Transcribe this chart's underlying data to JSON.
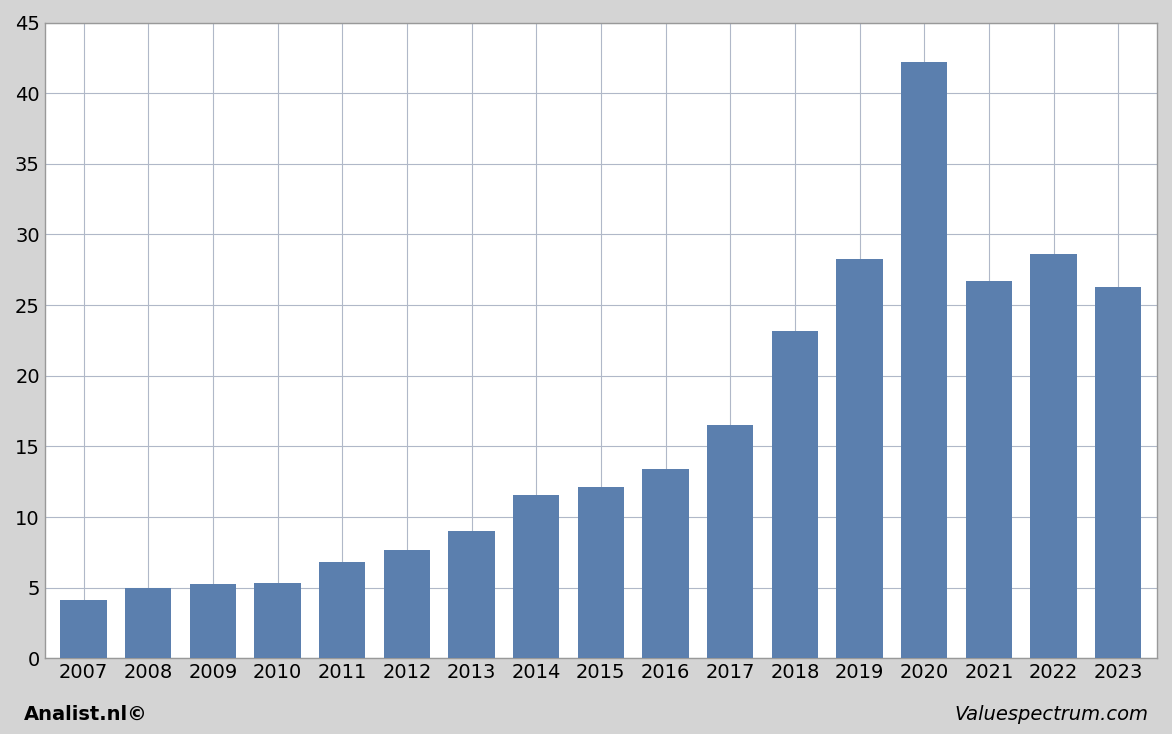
{
  "categories": [
    "2007",
    "2008",
    "2009",
    "2010",
    "2011",
    "2012",
    "2013",
    "2014",
    "2015",
    "2016",
    "2017",
    "2018",
    "2019",
    "2020",
    "2021",
    "2022",
    "2023"
  ],
  "values": [
    4.1,
    5.0,
    5.3,
    5.35,
    6.8,
    7.7,
    9.0,
    11.6,
    12.1,
    13.4,
    16.5,
    23.2,
    28.3,
    42.2,
    26.7,
    28.6,
    26.3
  ],
  "bar_color": "#5b7fae",
  "ylim": [
    0,
    45
  ],
  "yticks": [
    0,
    5,
    10,
    15,
    20,
    25,
    30,
    35,
    40,
    45
  ],
  "background_color": "#d4d4d4",
  "plot_background": "#ffffff",
  "grid_color": "#b0b8c8",
  "footer_left": "Analist.nl©",
  "footer_right": "Valuespectrum.com",
  "footer_fontsize": 14,
  "tick_fontsize": 14,
  "border_color": "#aaaaaa",
  "frame_color": "#999999"
}
